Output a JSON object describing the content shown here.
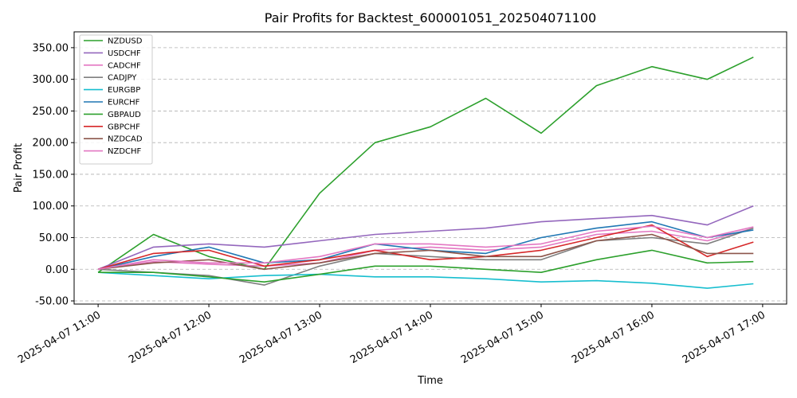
{
  "chart_data": {
    "type": "line",
    "title": "Pair Profits for Backtest_600001051_202504071100",
    "xlabel": "Time",
    "ylabel": "Pair Profit",
    "x": [
      "2025-04-07 11:00",
      "2025-04-07 11:30",
      "2025-04-07 12:00",
      "2025-04-07 12:30",
      "2025-04-07 13:00",
      "2025-04-07 13:30",
      "2025-04-07 14:00",
      "2025-04-07 14:30",
      "2025-04-07 15:00",
      "2025-04-07 15:30",
      "2025-04-07 16:00",
      "2025-04-07 16:30",
      "2025-04-07 16:55"
    ],
    "x_ticks": [
      "2025-04-07 11:00",
      "2025-04-07 12:00",
      "2025-04-07 13:00",
      "2025-04-07 14:00",
      "2025-04-07 15:00",
      "2025-04-07 16:00",
      "2025-04-07 17:00"
    ],
    "ylim": [
      -55,
      375
    ],
    "y_ticks": [
      "-50.00",
      "0.00",
      "50.00",
      "100.00",
      "150.00",
      "200.00",
      "250.00",
      "300.00",
      "350.00"
    ],
    "grid": "y-dashed",
    "legend_position": "top-left",
    "series": [
      {
        "name": "NZDUSD",
        "color": "#2ca02c",
        "values": [
          -5,
          55,
          20,
          0,
          120,
          200,
          225,
          270,
          215,
          290,
          320,
          300,
          335
        ]
      },
      {
        "name": "USDCHF",
        "color": "#9467bd",
        "values": [
          0,
          35,
          40,
          35,
          45,
          55,
          60,
          65,
          75,
          80,
          85,
          70,
          100
        ]
      },
      {
        "name": "CADCHF",
        "color": "#e377c2",
        "values": [
          0,
          12,
          8,
          5,
          10,
          30,
          35,
          30,
          35,
          55,
          60,
          45,
          65
        ]
      },
      {
        "name": "CADJPY",
        "color": "#7f7f7f",
        "values": [
          0,
          -5,
          -10,
          -25,
          5,
          25,
          20,
          15,
          15,
          45,
          50,
          40,
          65
        ]
      },
      {
        "name": "EURGBP",
        "color": "#17becf",
        "values": [
          -5,
          -10,
          -15,
          -10,
          -8,
          -12,
          -12,
          -15,
          -20,
          -18,
          -22,
          -30,
          -23
        ]
      },
      {
        "name": "EURCHF",
        "color": "#1f77b4",
        "values": [
          0,
          20,
          35,
          10,
          15,
          40,
          30,
          25,
          50,
          65,
          75,
          50,
          62
        ]
      },
      {
        "name": "GBPAUD",
        "color": "#2ca02c",
        "values": [
          -5,
          -5,
          -12,
          -20,
          -8,
          5,
          5,
          0,
          -5,
          15,
          30,
          10,
          12
        ]
      },
      {
        "name": "GBPCHF",
        "color": "#d62728",
        "values": [
          0,
          25,
          30,
          5,
          15,
          30,
          15,
          20,
          30,
          50,
          70,
          20,
          43
        ]
      },
      {
        "name": "NZDCAD",
        "color": "#8c564b",
        "values": [
          0,
          10,
          15,
          0,
          10,
          25,
          30,
          20,
          20,
          45,
          55,
          25,
          25
        ]
      },
      {
        "name": "NZDCHF",
        "color": "#e377c2",
        "values": [
          0,
          15,
          10,
          10,
          20,
          40,
          40,
          35,
          40,
          60,
          68,
          50,
          67
        ]
      }
    ]
  }
}
